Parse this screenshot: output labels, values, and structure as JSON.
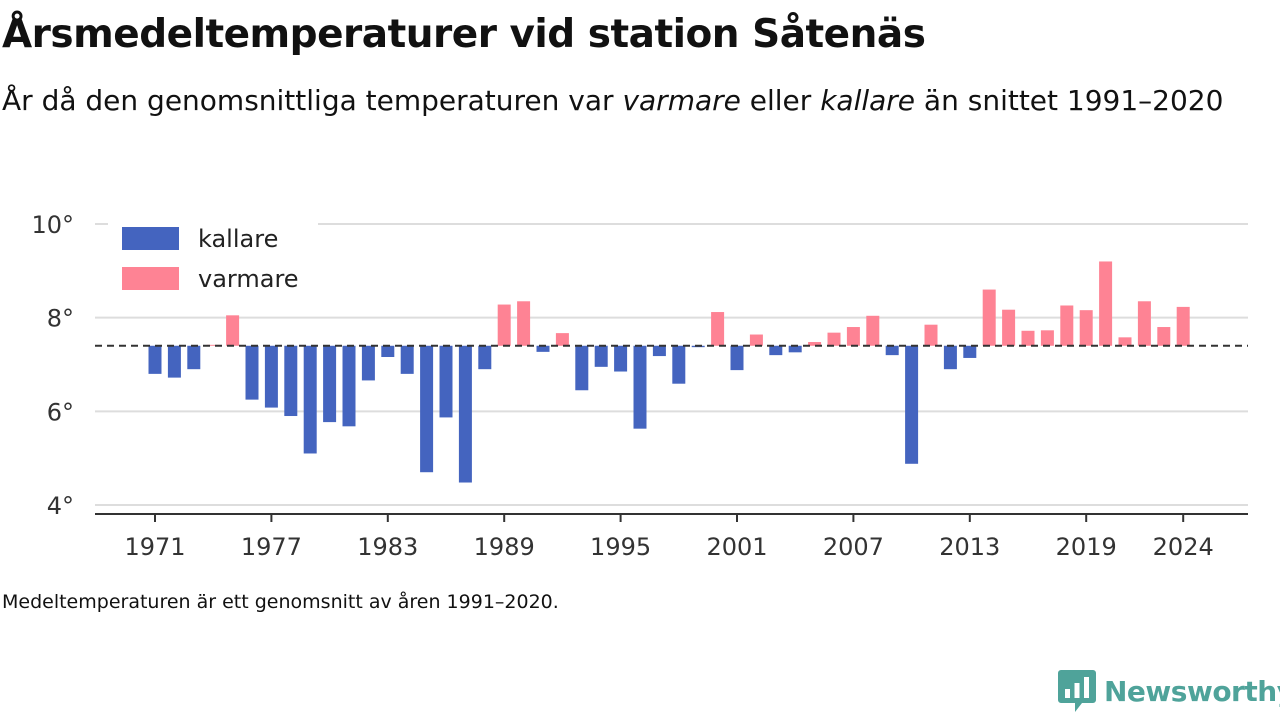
{
  "header": {
    "title": "Årsmedeltemperaturer vid station Såtenäs",
    "subtitle_pre": "År då den genomsnittliga temperaturen var ",
    "subtitle_warm": "varmare",
    "subtitle_mid": " eller ",
    "subtitle_cold": "kallare",
    "subtitle_post": " än snittet 1991–2020"
  },
  "footnote": "Medeltemperaturen är ett genomsnitt av åren 1991–2020.",
  "brand": {
    "name": "Newsworthy",
    "color": "#4fa39a"
  },
  "colors": {
    "kallare": "#4464bf",
    "varmare": "#fe8394",
    "reference_line": "#333333"
  },
  "chart_data": {
    "type": "bar",
    "baseline": 7.4,
    "ylim": [
      4,
      10
    ],
    "xlim": [
      1967.9,
      1971
    ],
    "y_ticks": [
      4,
      6,
      8,
      10
    ],
    "y_tick_labels": [
      "4°",
      "6°",
      "8°",
      "10°"
    ],
    "x_ticks": [
      1971,
      1977,
      1983,
      1989,
      1995,
      2001,
      2007,
      2013,
      2019,
      2024
    ],
    "x_tick_labels": [
      "1971",
      "1977",
      "1983",
      "1989",
      "1995",
      "2001",
      "2007",
      "2013",
      "2019",
      "2024"
    ],
    "legend": {
      "position": "top-left",
      "items": [
        "kallare",
        "varmare"
      ]
    },
    "grid": true,
    "series": [
      {
        "name": "kallare",
        "role": "cold"
      },
      {
        "name": "varmare",
        "role": "warm"
      }
    ],
    "years": [
      1971,
      1972,
      1973,
      1974,
      1975,
      1976,
      1977,
      1978,
      1979,
      1980,
      1981,
      1982,
      1983,
      1984,
      1985,
      1986,
      1987,
      1988,
      1989,
      1990,
      1991,
      1992,
      1993,
      1994,
      1995,
      1996,
      1997,
      1998,
      1999,
      2000,
      2001,
      2002,
      2003,
      2004,
      2005,
      2006,
      2007,
      2008,
      2009,
      2010,
      2011,
      2012,
      2013,
      2014,
      2015,
      2016,
      2017,
      2018,
      2019,
      2020,
      2021,
      2022,
      2023,
      2024
    ],
    "values": [
      6.8,
      6.72,
      6.9,
      7.42,
      8.05,
      6.25,
      6.08,
      5.9,
      5.1,
      5.77,
      5.68,
      6.66,
      7.16,
      6.8,
      4.7,
      5.87,
      4.48,
      6.9,
      8.28,
      8.35,
      7.27,
      7.67,
      6.45,
      6.95,
      6.85,
      5.63,
      7.18,
      6.59,
      7.37,
      8.12,
      6.88,
      7.64,
      7.2,
      7.26,
      7.48,
      7.68,
      7.8,
      8.04,
      7.2,
      4.88,
      7.85,
      6.9,
      7.14,
      8.6,
      8.17,
      7.72,
      7.73,
      8.26,
      8.16,
      9.2,
      7.58,
      8.35,
      7.8,
      8.23
    ]
  }
}
